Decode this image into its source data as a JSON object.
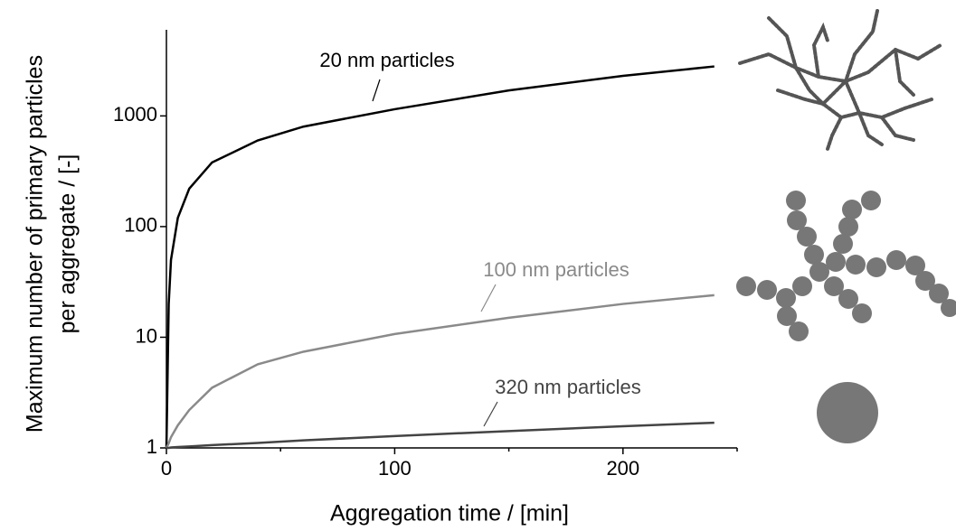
{
  "chart_data": {
    "type": "line",
    "x_label": "Aggregation time / [min]",
    "y_label": [
      "Maximum number of primary particles",
      "per aggregate / [-]"
    ],
    "x": [
      0,
      1,
      2,
      5,
      10,
      20,
      40,
      60,
      100,
      150,
      200,
      240
    ],
    "series": [
      {
        "name": "20 nm particles",
        "color": "#000000",
        "values": [
          1,
          20,
          50,
          120,
          220,
          380,
          600,
          800,
          1150,
          1700,
          2300,
          2800
        ]
      },
      {
        "name": "100 nm particles",
        "color": "#8a8a8a",
        "values": [
          1,
          1.1,
          1.25,
          1.6,
          2.2,
          3.5,
          5.7,
          7.4,
          10.7,
          15,
          20,
          24
        ]
      },
      {
        "name": "320 nm particles",
        "color": "#444444",
        "values": [
          1,
          1,
          1.01,
          1.02,
          1.03,
          1.06,
          1.11,
          1.17,
          1.28,
          1.42,
          1.57,
          1.69
        ]
      }
    ],
    "xlim": [
      0,
      250
    ],
    "xticks": [
      0,
      100,
      200
    ],
    "xminor_ticks": [
      50,
      150,
      250
    ],
    "ylim": [
      1,
      6000
    ],
    "yticks": [
      1,
      10,
      100,
      1000
    ],
    "log_y": true
  }
}
